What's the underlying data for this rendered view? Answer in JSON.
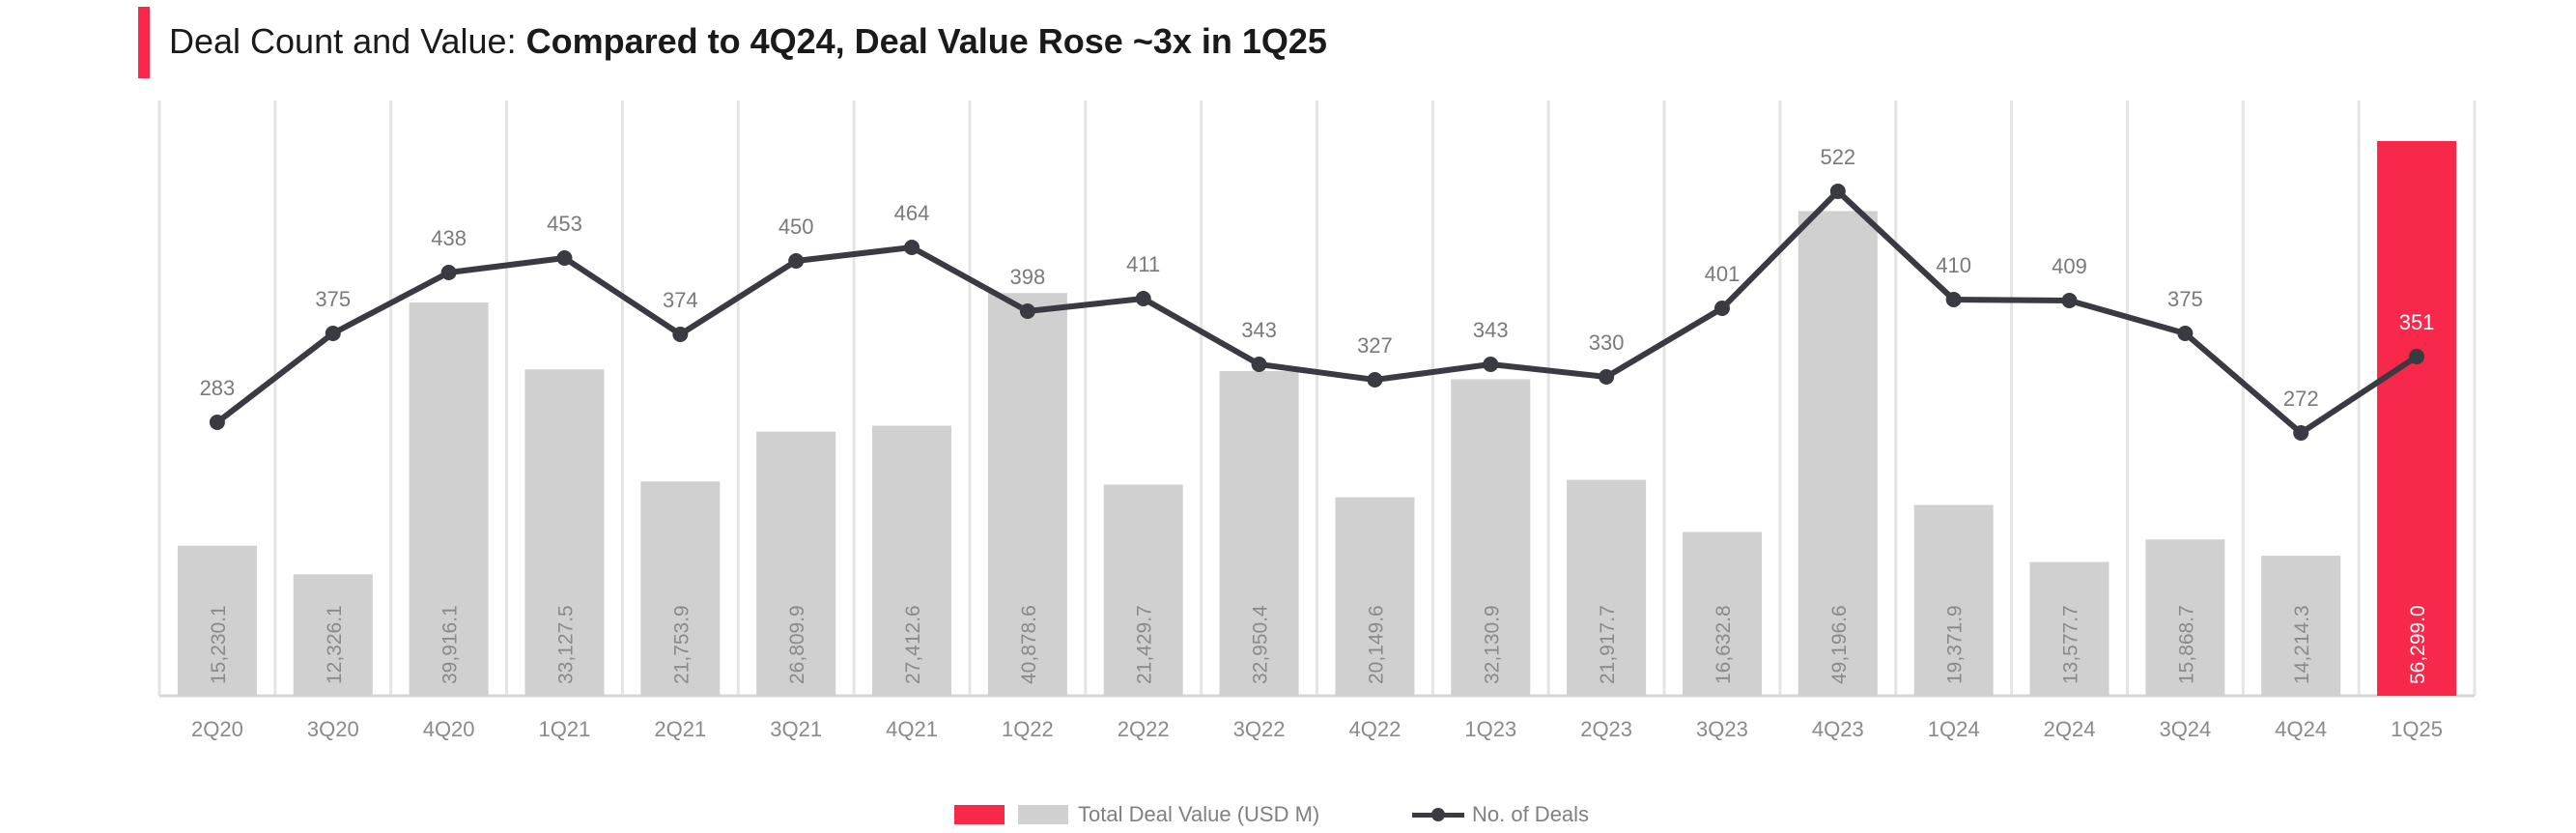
{
  "header": {
    "title_prefix": "Deal Count and Value: ",
    "title_headline": "Compared to 4Q24, Deal Value Rose ~3x in 1Q25",
    "accent_color": "#F7284A"
  },
  "legend": {
    "value_label": "Total Deal Value  (USD M)",
    "count_label": "No. of Deals"
  },
  "colors": {
    "bar": "#D0D0D0",
    "highlight_bar": "#F7284A",
    "line": "#3A3A42",
    "bar_label": "#8A8A8A",
    "highlight_bar_label": "#FFFFFF",
    "point_label": "#7A7A7A",
    "gridline": "#E4E4E4"
  },
  "chart_data": {
    "type": "bar",
    "categories": [
      "2Q20",
      "3Q20",
      "4Q20",
      "1Q21",
      "2Q21",
      "3Q21",
      "4Q21",
      "1Q22",
      "2Q22",
      "3Q22",
      "4Q22",
      "1Q23",
      "2Q23",
      "3Q23",
      "4Q23",
      "1Q24",
      "2Q24",
      "3Q24",
      "4Q24",
      "1Q25"
    ],
    "series": [
      {
        "name": "Total Deal Value  (USD M)",
        "type": "bar",
        "values": [
          15230.1,
          12326.1,
          39916.1,
          33127.5,
          21753.9,
          26809.9,
          27412.6,
          40878.6,
          21429.7,
          32950.4,
          20149.6,
          32130.9,
          21917.7,
          16632.8,
          49196.6,
          19371.9,
          13577.7,
          15868.7,
          14214.3,
          56299.0
        ],
        "labels": [
          "15,230.1",
          "12,326.1",
          "39,916.1",
          "33,127.5",
          "21,753.9",
          "26,809.9",
          "27,412.6",
          "40,878.6",
          "21,429.7",
          "32,950.4",
          "20,149.6",
          "32,130.9",
          "21,917.7",
          "16,632.8",
          "49,196.6",
          "19,371.9",
          "13,577.7",
          "15,868.7",
          "14,214.3",
          "56,299.0"
        ],
        "highlight": "1Q25"
      },
      {
        "name": "No. of Deals",
        "type": "line",
        "values": [
          283,
          375,
          438,
          453,
          374,
          450,
          464,
          398,
          411,
          343,
          327,
          343,
          330,
          401,
          522,
          410,
          409,
          375,
          272,
          351
        ]
      }
    ],
    "bar_axis_range": [
      0,
      58000
    ],
    "line_axis_range": [
      0,
      720
    ],
    "grid": "vertical",
    "legend_position": "bottom"
  }
}
